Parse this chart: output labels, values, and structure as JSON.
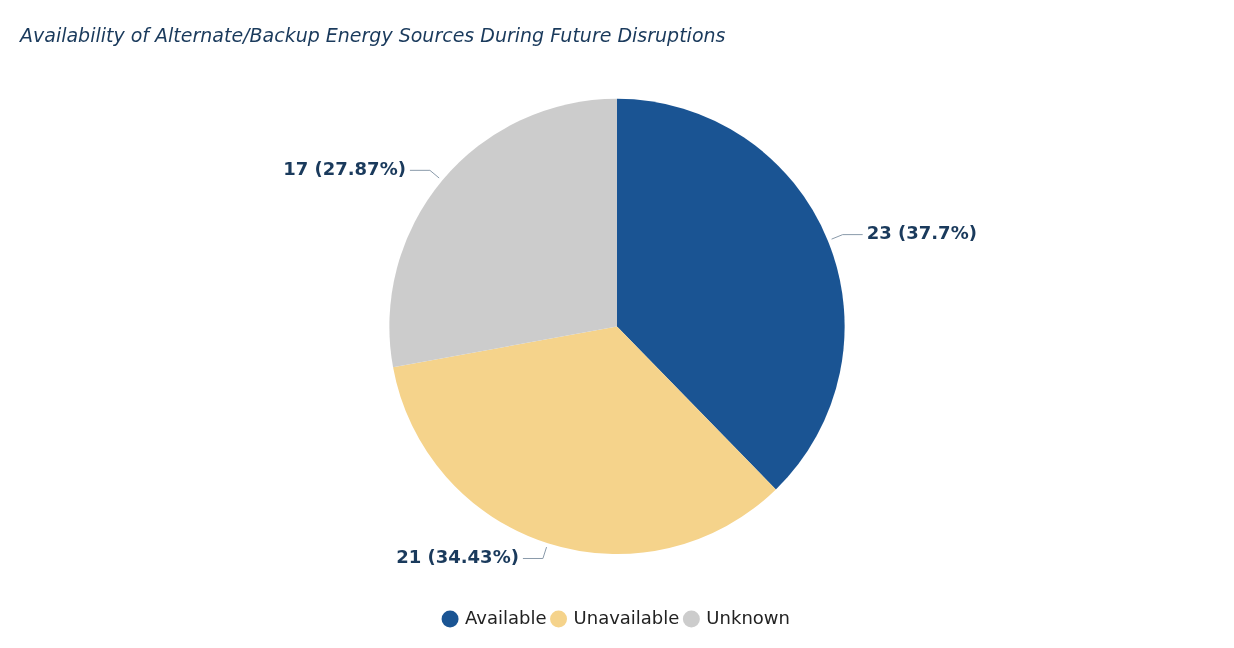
{
  "chart_data": {
    "type": "pie",
    "title": "Availability of Alternate/Backup Energy Sources During Future Disruptions",
    "categories": [
      "Available",
      "Unavailable",
      "Unknown"
    ],
    "values": [
      23,
      21,
      17
    ],
    "colors": [
      "#1a5493",
      "#f5d38b",
      "#cccccc"
    ],
    "value_labels": [
      "23 (37.7%)",
      "21 (34.43%)",
      "17 (27.87%)"
    ],
    "legend": "bottom"
  }
}
